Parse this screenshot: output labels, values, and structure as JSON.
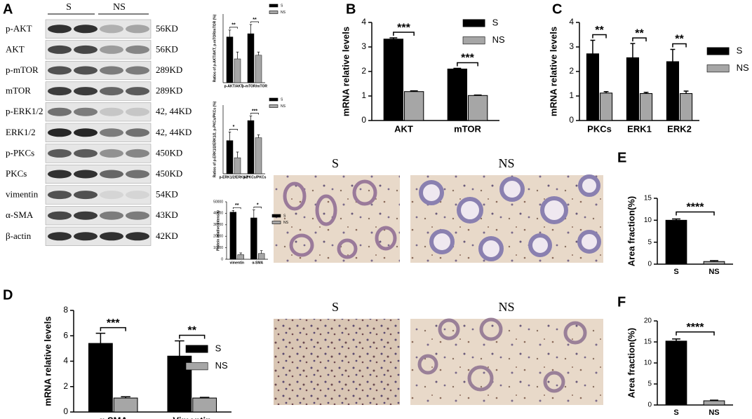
{
  "panel_labels": [
    "A",
    "B",
    "C",
    "D",
    "E",
    "F"
  ],
  "blot": {
    "groups": [
      "S",
      "NS"
    ],
    "rows": [
      {
        "protein": "p-AKT",
        "size": "56KD"
      },
      {
        "protein": "AKT",
        "size": "56KD"
      },
      {
        "protein": "p-mTOR",
        "size": "289KD"
      },
      {
        "protein": "mTOR",
        "size": "289KD"
      },
      {
        "protein": "p-ERK1/2",
        "size": "42, 44KD"
      },
      {
        "protein": "ERK1/2",
        "size": "42, 44KD"
      },
      {
        "protein": "p-PKCs",
        "size": "450KD"
      },
      {
        "protein": "PKCs",
        "size": "450KD"
      },
      {
        "protein": "vimentin",
        "size": "54KD"
      },
      {
        "protein": "α-SMA",
        "size": "43KD"
      },
      {
        "protein": "β-actin",
        "size": "42KD"
      }
    ]
  },
  "images": {
    "E": [
      "S",
      "NS"
    ],
    "F": [
      "S",
      "NS"
    ]
  },
  "chart_data": [
    {
      "type": "bar",
      "ylabel": "Ratios of p-AKT/AKT, p-mTOR/mTOR (%)",
      "categories": [
        "p-AKT/AKT",
        "p-mTOR/mTOR"
      ],
      "series": [
        {
          "name": "S",
          "color": "#000000",
          "values": [
            100,
            107
          ],
          "errors": [
            15,
            20
          ]
        },
        {
          "name": "NS",
          "color": "#a6a6a6",
          "values": [
            52,
            60
          ],
          "errors": [
            15,
            7
          ]
        }
      ],
      "significance": [
        "**",
        "**"
      ],
      "ylim": [
        0,
        150
      ]
    },
    {
      "type": "bar",
      "ylabel": "Ratios of p-ERK1/2/ERK1/2, p-PKCs/PKCs (%)",
      "categories": [
        "p-ERK1/2/ERK1/2",
        "p-PKCs/PKCs"
      ],
      "series": [
        {
          "name": "S",
          "color": "#000000",
          "values": [
            58,
            93
          ],
          "errors": [
            15,
            8
          ]
        },
        {
          "name": "NS",
          "color": "#a6a6a6",
          "values": [
            28,
            63
          ],
          "errors": [
            10,
            5
          ]
        }
      ],
      "significance": [
        "*",
        "***"
      ],
      "ylim": [
        0,
        120
      ]
    },
    {
      "type": "bar",
      "ylabel": "Protein relative intensity",
      "categories": [
        "vimentin",
        "α-SMA"
      ],
      "series": [
        {
          "name": "S",
          "color": "#000000",
          "values": [
            41000,
            36000
          ],
          "errors": [
            1500,
            7000
          ]
        },
        {
          "name": "NS",
          "color": "#a6a6a6",
          "values": [
            4000,
            5000
          ],
          "errors": [
            1500,
            2500
          ]
        }
      ],
      "significance": [
        "**",
        "*"
      ],
      "ylim": [
        0,
        50000
      ],
      "yticks": [
        0,
        10000,
        20000,
        30000,
        40000,
        50000
      ]
    },
    {
      "type": "bar",
      "ylabel": "mRNA relative levels",
      "categories": [
        "AKT",
        "mTOR"
      ],
      "series": [
        {
          "name": "S",
          "color": "#000000",
          "values": [
            3.32,
            2.1
          ],
          "errors": [
            0.05,
            0.03
          ]
        },
        {
          "name": "NS",
          "color": "#a6a6a6",
          "values": [
            1.18,
            1.02
          ],
          "errors": [
            0.03,
            0.02
          ]
        }
      ],
      "significance": [
        "***",
        "***"
      ],
      "ylim": [
        0,
        4
      ],
      "yticks": [
        0,
        1,
        2,
        3,
        4
      ]
    },
    {
      "type": "bar",
      "ylabel": "mRNA relative levels",
      "categories": [
        "PKCs",
        "ERK1",
        "ERK2"
      ],
      "series": [
        {
          "name": "S",
          "color": "#000000",
          "values": [
            2.72,
            2.56,
            2.4
          ],
          "errors": [
            0.55,
            0.58,
            0.5
          ]
        },
        {
          "name": "NS",
          "color": "#a6a6a6",
          "values": [
            1.12,
            1.1,
            1.1
          ],
          "errors": [
            0.06,
            0.05,
            0.1
          ]
        }
      ],
      "significance": [
        "**",
        "**",
        "**"
      ],
      "ylim": [
        0,
        4
      ],
      "yticks": [
        0,
        1,
        2,
        3,
        4
      ]
    },
    {
      "type": "bar",
      "ylabel": "mRNA relative levels",
      "categories": [
        "α-SMA",
        "Vimentin"
      ],
      "series": [
        {
          "name": "S",
          "color": "#000000",
          "values": [
            5.4,
            4.4
          ],
          "errors": [
            0.8,
            1.2
          ]
        },
        {
          "name": "NS",
          "color": "#a6a6a6",
          "values": [
            1.1,
            1.1
          ],
          "errors": [
            0.1,
            0.05
          ]
        }
      ],
      "significance": [
        "***",
        "**"
      ],
      "ylim": [
        0,
        8
      ],
      "yticks": [
        0,
        2,
        4,
        6,
        8
      ]
    },
    {
      "type": "simplebar",
      "ylabel": "Area fraction(%)",
      "categories": [
        "S",
        "NS"
      ],
      "values": [
        10,
        0.6
      ],
      "errors": [
        0.3,
        0.2
      ],
      "colors": [
        "#000000",
        "#a6a6a6"
      ],
      "significance": [
        "****"
      ],
      "ylim": [
        0,
        15
      ],
      "yticks": [
        0,
        5,
        10,
        15
      ]
    },
    {
      "type": "simplebar",
      "ylabel": "Area fraction(%)",
      "categories": [
        "S",
        "NS"
      ],
      "values": [
        15.2,
        1.0
      ],
      "errors": [
        0.5,
        0.15
      ],
      "colors": [
        "#000000",
        "#a6a6a6"
      ],
      "significance": [
        "****"
      ],
      "ylim": [
        0,
        20
      ],
      "yticks": [
        0,
        5,
        10,
        15,
        20
      ]
    }
  ]
}
